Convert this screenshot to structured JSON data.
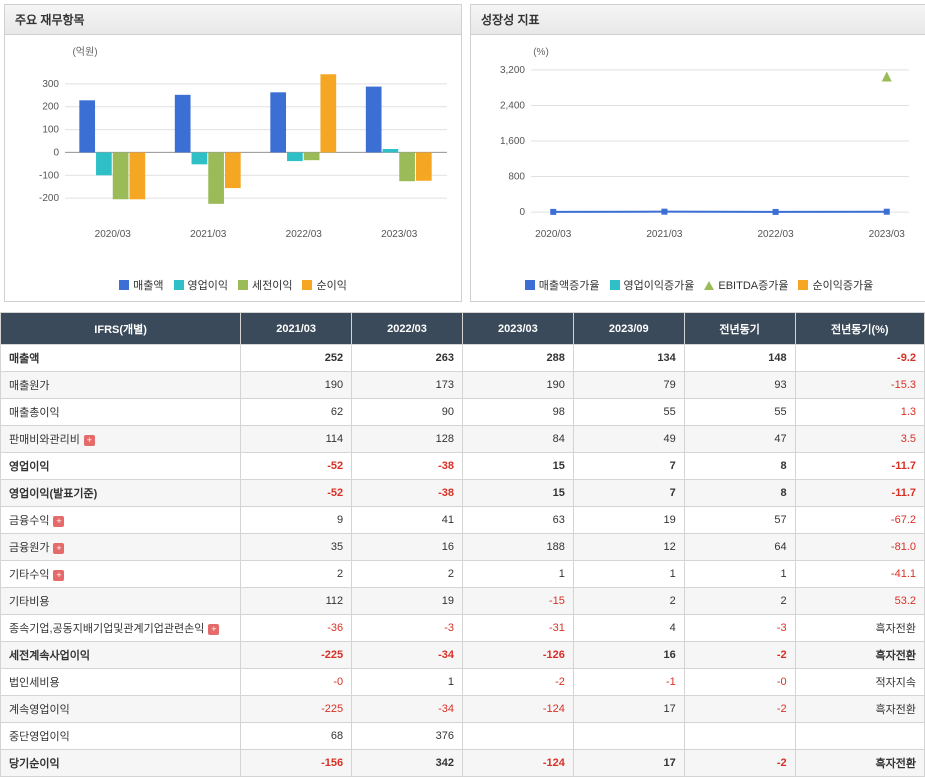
{
  "panel1": {
    "title": "주요 재무항목",
    "chart": {
      "type": "grouped-bar",
      "unit_label": "(억원)",
      "categories": [
        "2020/03",
        "2021/03",
        "2022/03",
        "2023/03"
      ],
      "ylim": [
        -300,
        400
      ],
      "ytick_step": 100,
      "yticks": [
        -200,
        -100,
        0,
        100,
        200,
        300
      ],
      "series": [
        {
          "name": "매출액",
          "color": "#3b6fd4",
          "values": [
            228,
            252,
            263,
            288
          ]
        },
        {
          "name": "영업이익",
          "color": "#2fc0c7",
          "values": [
            -100,
            -52,
            -38,
            15
          ]
        },
        {
          "name": "세전이익",
          "color": "#9bbb59",
          "values": [
            -205,
            -225,
            -34,
            -126
          ]
        },
        {
          "name": "순이익",
          "color": "#f5a623",
          "values": [
            -205,
            -156,
            342,
            -124
          ]
        }
      ],
      "background_color": "#ffffff",
      "grid_color": "#e0e0e0",
      "bar_group_width": 0.7
    }
  },
  "panel2": {
    "title": "성장성 지표",
    "chart": {
      "type": "line",
      "unit_label": "(%)",
      "categories": [
        "2020/03",
        "2021/03",
        "2022/03",
        "2023/03"
      ],
      "ylim": [
        -200,
        3400
      ],
      "yticks": [
        0,
        800,
        1600,
        2400,
        3200
      ],
      "series": [
        {
          "name": "매출액증가율",
          "color": "#3b6fd4",
          "marker": "square",
          "values": [
            5,
            10,
            4,
            9
          ]
        },
        {
          "name": "영업이익증가율",
          "color": "#2fc0c7",
          "marker": "square",
          "values": [
            null,
            null,
            null,
            null
          ]
        },
        {
          "name": "EBITDA증가율",
          "color": "#9bbb59",
          "marker": "triangle",
          "values": [
            null,
            null,
            null,
            3050
          ]
        },
        {
          "name": "순이익증가율",
          "color": "#f5a623",
          "marker": "square",
          "values": [
            null,
            null,
            null,
            null
          ]
        }
      ],
      "background_color": "#ffffff",
      "grid_color": "#e0e0e0"
    }
  },
  "table": {
    "header_label": "IFRS(개별)",
    "columns": [
      "2021/03",
      "2022/03",
      "2023/03",
      "2023/09",
      "전년동기",
      "전년동기(%)"
    ],
    "col_widths_pct": [
      26,
      12,
      12,
      12,
      12,
      12,
      14
    ],
    "rows": [
      {
        "label": "매출액",
        "bold": true,
        "expand": false,
        "values": [
          "252",
          "263",
          "288",
          "134",
          "148",
          "-9.2"
        ]
      },
      {
        "label": "매출원가",
        "bold": false,
        "expand": false,
        "values": [
          "190",
          "173",
          "190",
          "79",
          "93",
          "-15.3"
        ]
      },
      {
        "label": "매출총이익",
        "bold": false,
        "expand": false,
        "values": [
          "62",
          "90",
          "98",
          "55",
          "55",
          "1.3"
        ]
      },
      {
        "label": "판매비와관리비",
        "bold": false,
        "expand": true,
        "values": [
          "114",
          "128",
          "84",
          "49",
          "47",
          "3.5"
        ]
      },
      {
        "label": "영업이익",
        "bold": true,
        "expand": false,
        "values": [
          "-52",
          "-38",
          "15",
          "7",
          "8",
          "-11.7"
        ]
      },
      {
        "label": "영업이익(발표기준)",
        "bold": true,
        "expand": false,
        "values": [
          "-52",
          "-38",
          "15",
          "7",
          "8",
          "-11.7"
        ]
      },
      {
        "label": "금융수익",
        "bold": false,
        "expand": true,
        "values": [
          "9",
          "41",
          "63",
          "19",
          "57",
          "-67.2"
        ]
      },
      {
        "label": "금융원가",
        "bold": false,
        "expand": true,
        "values": [
          "35",
          "16",
          "188",
          "12",
          "64",
          "-81.0"
        ]
      },
      {
        "label": "기타수익",
        "bold": false,
        "expand": true,
        "values": [
          "2",
          "2",
          "1",
          "1",
          "1",
          "-41.1"
        ]
      },
      {
        "label": "기타비용",
        "bold": false,
        "expand": false,
        "values": [
          "112",
          "19",
          "-15",
          "2",
          "2",
          "53.2"
        ]
      },
      {
        "label": "종속기업,공동지배기업및관계기업관련손익",
        "bold": false,
        "expand": true,
        "values": [
          "-36",
          "-3",
          "-31",
          "4",
          "-3",
          "흑자전환"
        ]
      },
      {
        "label": "세전계속사업이익",
        "bold": true,
        "expand": false,
        "values": [
          "-225",
          "-34",
          "-126",
          "16",
          "-2",
          "흑자전환"
        ]
      },
      {
        "label": "법인세비용",
        "bold": false,
        "expand": false,
        "values": [
          "-0",
          "1",
          "-2",
          "-1",
          "-0",
          "적자지속"
        ]
      },
      {
        "label": "계속영업이익",
        "bold": false,
        "expand": false,
        "values": [
          "-225",
          "-34",
          "-124",
          "17",
          "-2",
          "흑자전환"
        ]
      },
      {
        "label": "중단영업이익",
        "bold": false,
        "expand": false,
        "values": [
          "68",
          "376",
          "",
          "",
          "",
          ""
        ]
      },
      {
        "label": "당기순이익",
        "bold": true,
        "expand": false,
        "values": [
          "-156",
          "342",
          "-124",
          "17",
          "-2",
          "흑자전환"
        ]
      }
    ]
  }
}
